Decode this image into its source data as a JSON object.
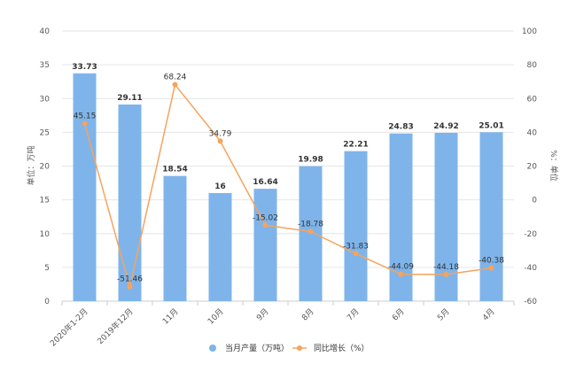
{
  "chart_data": {
    "type": "bar",
    "categories": [
      "2020年1-2月",
      "2019年12月",
      "11月",
      "10月",
      "9月",
      "8月",
      "7月",
      "6月",
      "5月",
      "4月"
    ],
    "series": [
      {
        "name": "当月产量（万吨）",
        "type": "bar",
        "axis": "left",
        "values": [
          33.73,
          29.11,
          18.54,
          16,
          16.64,
          19.98,
          22.21,
          24.83,
          24.92,
          25.01
        ],
        "labels": [
          "33.73",
          "29.11",
          "18.54",
          "16",
          "16.64",
          "19.98",
          "22.21",
          "24.83",
          "24.92",
          "25.01"
        ],
        "color": "#7eb4ea"
      },
      {
        "name": "同比增长（%）",
        "type": "line",
        "axis": "right",
        "values": [
          45.15,
          -51.46,
          68.24,
          34.79,
          -15.02,
          -18.78,
          -31.83,
          -44.09,
          -44.18,
          -40.38
        ],
        "labels": [
          "45.15",
          "-51.46",
          "68.24",
          "34.79",
          "-15.02",
          "-18.78",
          "-31.83",
          "-44.09",
          "-44.18",
          "-40.38"
        ],
        "color": "#f7a35c"
      }
    ],
    "left_axis": {
      "label": "单位：万吨",
      "ylim": [
        0,
        40
      ],
      "ticks": [
        "0",
        "5",
        "10",
        "15",
        "20",
        "25",
        "30",
        "35",
        "40"
      ]
    },
    "right_axis": {
      "label": "%：单位",
      "ylim": [
        -60,
        100
      ],
      "ticks": [
        "-60",
        "-40",
        "-20",
        "0",
        "20",
        "40",
        "60",
        "80",
        "100"
      ]
    },
    "grid": true,
    "legend_position": "bottom"
  }
}
